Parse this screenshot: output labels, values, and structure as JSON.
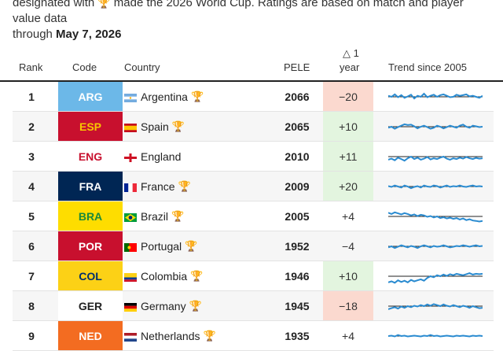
{
  "intro": {
    "line1_prefix": "designated with",
    "line1_suffix": "made the 2026 World Cup. Ratings are based on match and player value data",
    "line2_prefix": "through",
    "line2_date": "May 7, 2026",
    "trophy_icon": "trophy-icon"
  },
  "header": {
    "rank": "Rank",
    "code": "Code",
    "country": "Country",
    "pele": "PELE",
    "delta_symbol": "△ 1",
    "delta_unit": "year",
    "trend": "Trend since 2005"
  },
  "colors": {
    "negative_bg": "#fbd9cf",
    "positive_bg": "#e3f5df",
    "trend_line": "#2a8bd0",
    "baseline": "#222222"
  },
  "rows": [
    {
      "rank": "1",
      "code": "ARG",
      "code_bg": "#6cb8e8",
      "code_fg": "#ffffff",
      "country": "Argentina",
      "flag": "argentina-flag",
      "trophy": true,
      "pele": "2066",
      "delta": "−20",
      "delta_sign": "neg",
      "trend": [
        0.55,
        0.5,
        0.62,
        0.48,
        0.58,
        0.45,
        0.52,
        0.6,
        0.42,
        0.55,
        0.5,
        0.65,
        0.48,
        0.55,
        0.6,
        0.5,
        0.58,
        0.62,
        0.55,
        0.48,
        0.5,
        0.6,
        0.55,
        0.58,
        0.62,
        0.52,
        0.55,
        0.5,
        0.45,
        0.55
      ]
    },
    {
      "rank": "2",
      "code": "ESP",
      "code_bg": "#c8102e",
      "code_fg": "#f7c600",
      "country": "Spain",
      "flag": "spain-flag",
      "trophy": true,
      "pele": "2065",
      "delta": "+10",
      "delta_sign": "pos",
      "trend": [
        0.45,
        0.5,
        0.4,
        0.48,
        0.55,
        0.62,
        0.58,
        0.6,
        0.52,
        0.42,
        0.5,
        0.55,
        0.48,
        0.4,
        0.45,
        0.55,
        0.5,
        0.42,
        0.48,
        0.55,
        0.5,
        0.45,
        0.55,
        0.6,
        0.5,
        0.45,
        0.55,
        0.52,
        0.48,
        0.5
      ]
    },
    {
      "rank": "3",
      "code": "ENG",
      "code_bg": "#ffffff",
      "code_fg": "#c8102e",
      "country": "England",
      "flag": "england-flag",
      "trophy": false,
      "pele": "2010",
      "delta": "+11",
      "delta_sign": "pos",
      "trend": [
        0.35,
        0.4,
        0.32,
        0.45,
        0.38,
        0.3,
        0.42,
        0.5,
        0.38,
        0.45,
        0.35,
        0.4,
        0.48,
        0.36,
        0.42,
        0.38,
        0.45,
        0.5,
        0.4,
        0.35,
        0.42,
        0.38,
        0.45,
        0.4,
        0.48,
        0.42,
        0.38,
        0.44,
        0.4,
        0.42
      ]
    },
    {
      "rank": "4",
      "code": "FRA",
      "code_bg": "#002654",
      "code_fg": "#ffffff",
      "country": "France",
      "flag": "france-flag",
      "trophy": true,
      "pele": "2009",
      "delta": "+20",
      "delta_sign": "pos",
      "trend": [
        0.52,
        0.48,
        0.55,
        0.5,
        0.45,
        0.55,
        0.5,
        0.42,
        0.48,
        0.52,
        0.45,
        0.55,
        0.5,
        0.48,
        0.55,
        0.52,
        0.45,
        0.5,
        0.55,
        0.48,
        0.52,
        0.5,
        0.55,
        0.5,
        0.48,
        0.52,
        0.55,
        0.5,
        0.52,
        0.5
      ]
    },
    {
      "rank": "5",
      "code": "BRA",
      "code_bg": "#fedd00",
      "code_fg": "#1a8a3a",
      "country": "Brazil",
      "flag": "brazil-flag",
      "trophy": true,
      "pele": "2005",
      "delta": "+4",
      "delta_sign": "neutral",
      "trend": [
        0.68,
        0.62,
        0.7,
        0.65,
        0.6,
        0.66,
        0.62,
        0.55,
        0.6,
        0.52,
        0.58,
        0.55,
        0.48,
        0.52,
        0.45,
        0.5,
        0.42,
        0.46,
        0.4,
        0.44,
        0.38,
        0.42,
        0.35,
        0.4,
        0.32,
        0.36,
        0.3,
        0.28,
        0.25,
        0.28
      ]
    },
    {
      "rank": "6",
      "code": "POR",
      "code_bg": "#c8102e",
      "code_fg": "#ffffff",
      "country": "Portugal",
      "flag": "portugal-flag",
      "trophy": true,
      "pele": "1952",
      "delta": "−4",
      "delta_sign": "neutral",
      "trend": [
        0.45,
        0.5,
        0.42,
        0.48,
        0.55,
        0.5,
        0.45,
        0.52,
        0.48,
        0.42,
        0.5,
        0.55,
        0.5,
        0.45,
        0.52,
        0.48,
        0.5,
        0.55,
        0.5,
        0.45,
        0.48,
        0.52,
        0.5,
        0.55,
        0.52,
        0.48,
        0.52,
        0.55,
        0.5,
        0.52
      ]
    },
    {
      "rank": "7",
      "code": "COL",
      "code_bg": "#fcd116",
      "code_fg": "#002f6c",
      "country": "Colombia",
      "flag": "colombia-flag",
      "trophy": true,
      "pele": "1946",
      "delta": "+10",
      "delta_sign": "pos",
      "trend": [
        0.2,
        0.25,
        0.18,
        0.3,
        0.22,
        0.28,
        0.2,
        0.32,
        0.25,
        0.3,
        0.35,
        0.28,
        0.42,
        0.5,
        0.45,
        0.55,
        0.5,
        0.58,
        0.52,
        0.6,
        0.55,
        0.62,
        0.58,
        0.55,
        0.6,
        0.65,
        0.58,
        0.62,
        0.6,
        0.62
      ]
    },
    {
      "rank": "8",
      "code": "GER",
      "code_bg": "#ffffff",
      "code_fg": "#222222",
      "country": "Germany",
      "flag": "germany-flag",
      "trophy": true,
      "pele": "1945",
      "delta": "−18",
      "delta_sign": "neg",
      "trend": [
        0.35,
        0.4,
        0.45,
        0.38,
        0.48,
        0.42,
        0.5,
        0.45,
        0.52,
        0.48,
        0.55,
        0.5,
        0.58,
        0.52,
        0.6,
        0.55,
        0.5,
        0.58,
        0.52,
        0.48,
        0.55,
        0.5,
        0.45,
        0.52,
        0.48,
        0.42,
        0.5,
        0.45,
        0.4,
        0.42
      ]
    },
    {
      "rank": "9",
      "code": "NED",
      "code_bg": "#f36c21",
      "code_fg": "#ffffff",
      "country": "Netherlands",
      "flag": "netherlands-flag",
      "trophy": true,
      "pele": "1935",
      "delta": "+4",
      "delta_sign": "neutral",
      "trend": [
        0.5,
        0.52,
        0.48,
        0.55,
        0.5,
        0.52,
        0.48,
        0.5,
        0.52,
        0.5,
        0.48,
        0.52,
        0.5,
        0.55,
        0.5,
        0.52,
        0.48,
        0.5,
        0.52,
        0.5,
        0.48,
        0.52,
        0.5,
        0.52,
        0.5,
        0.48,
        0.52,
        0.5,
        0.52,
        0.5
      ]
    }
  ]
}
